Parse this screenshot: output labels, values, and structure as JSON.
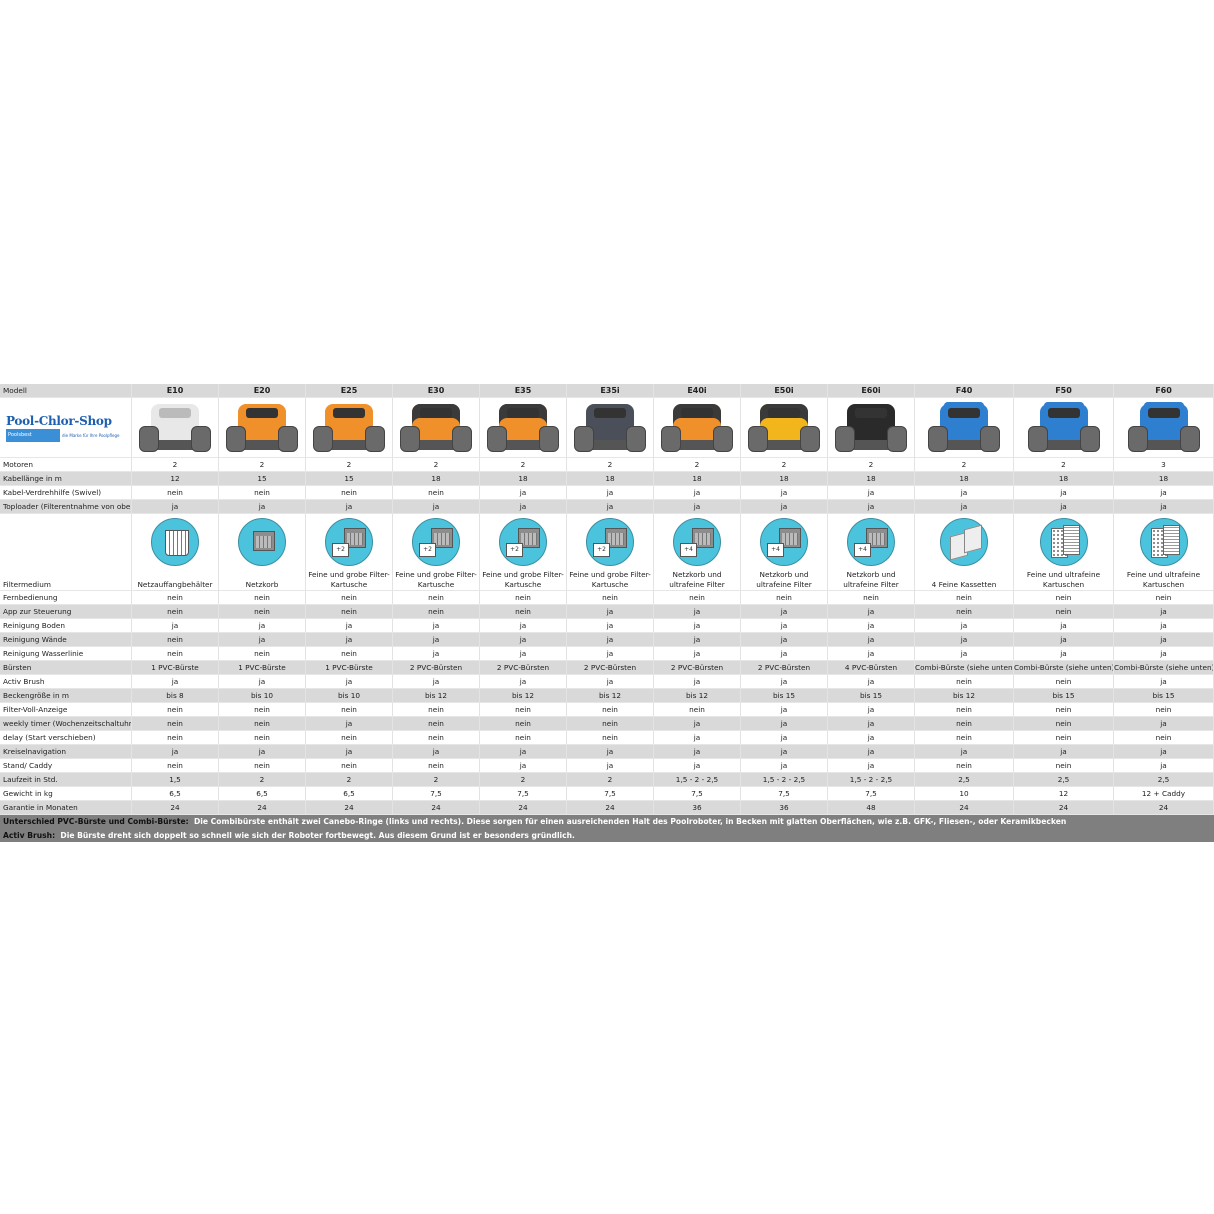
{
  "brand": {
    "logo_text": "Pool-Chlor-Shop",
    "logo_sub": "Poolsbest",
    "logo_tagline": "die Marke für Ihre Poolpflege"
  },
  "colors": {
    "header_row": "#d9d9d9",
    "stripe_row": "#d9d9d9",
    "footer": "#7f7f7f",
    "icon_circle": "#4cc3dc",
    "robot_orange": "#f0902a",
    "robot_blue": "#2f7fd1"
  },
  "table": {
    "model_label": "Modell",
    "models": [
      {
        "name": "E10",
        "robot": "white"
      },
      {
        "name": "E20",
        "robot": "orange"
      },
      {
        "name": "E25",
        "robot": "orange"
      },
      {
        "name": "E30",
        "robot": "orange-dark"
      },
      {
        "name": "E35",
        "robot": "orange-dark"
      },
      {
        "name": "E35i",
        "robot": "dark"
      },
      {
        "name": "E40i",
        "robot": "orange-dark"
      },
      {
        "name": "E50i",
        "robot": "yellow-dark"
      },
      {
        "name": "E60i",
        "robot": "black"
      },
      {
        "name": "F40",
        "robot": "blue"
      },
      {
        "name": "F50",
        "robot": "blue"
      },
      {
        "name": "F60",
        "robot": "blue"
      }
    ],
    "rows_top": [
      {
        "label": "Motoren",
        "values": [
          "2",
          "2",
          "2",
          "2",
          "2",
          "2",
          "2",
          "2",
          "2",
          "2",
          "2",
          "3"
        ]
      },
      {
        "label": "Kabellänge in m",
        "values": [
          "12",
          "15",
          "15",
          "18",
          "18",
          "18",
          "18",
          "18",
          "18",
          "18",
          "18",
          "18"
        ]
      },
      {
        "label": "Kabel-Verdrehhilfe (Swivel)",
        "values": [
          "nein",
          "nein",
          "nein",
          "nein",
          "ja",
          "ja",
          "ja",
          "ja",
          "ja",
          "ja",
          "ja",
          "ja"
        ]
      },
      {
        "label": "Toploader (Filterentnahme von oben)",
        "values": [
          "ja",
          "ja",
          "ja",
          "ja",
          "ja",
          "ja",
          "ja",
          "ja",
          "ja",
          "ja",
          "ja",
          "ja"
        ]
      }
    ],
    "filter": {
      "label": "Filtermedium",
      "values": [
        "Netzauffangbehälter",
        "Netzkorb",
        "Feine und grobe Filter-Kartusche",
        "Feine und grobe Filter-Kartusche",
        "Feine und grobe Filter-Kartusche",
        "Feine und grobe Filter-Kartusche",
        "Netzkorb und ultrafeine Filter",
        "Netzkorb und ultrafeine Filter",
        "Netzkorb und ultrafeine Filter",
        "4 Feine Kassetten",
        "Feine und ultrafeine Kartuschen",
        "Feine und ultrafeine Kartuschen"
      ],
      "icons": [
        "basket-icon",
        "box-icon",
        "box-plus-icon",
        "box-plus-icon",
        "box-plus-icon",
        "box-plus-icon",
        "box-plus-icon",
        "box-plus-icon",
        "box-plus-icon",
        "cassettes-icon",
        "cartridges-icon",
        "cartridges-icon"
      ],
      "badges": [
        "",
        "",
        "+2",
        "+2",
        "+2",
        "+2",
        "+4",
        "+4",
        "+4",
        "",
        "",
        ""
      ]
    },
    "rows_bottom": [
      {
        "label": "Fernbedienung",
        "values": [
          "nein",
          "nein",
          "nein",
          "nein",
          "nein",
          "nein",
          "nein",
          "nein",
          "nein",
          "nein",
          "nein",
          "nein"
        ]
      },
      {
        "label": "App zur Steuerung",
        "values": [
          "nein",
          "nein",
          "nein",
          "nein",
          "nein",
          "ja",
          "ja",
          "ja",
          "ja",
          "nein",
          "nein",
          "ja"
        ]
      },
      {
        "label": "Reinigung Boden",
        "values": [
          "ja",
          "ja",
          "ja",
          "ja",
          "ja",
          "ja",
          "ja",
          "ja",
          "ja",
          "ja",
          "ja",
          "ja"
        ]
      },
      {
        "label": "Reinigung Wände",
        "values": [
          "nein",
          "ja",
          "ja",
          "ja",
          "ja",
          "ja",
          "ja",
          "ja",
          "ja",
          "ja",
          "ja",
          "ja"
        ]
      },
      {
        "label": "Reinigung Wasserlinie",
        "values": [
          "nein",
          "nein",
          "nein",
          "ja",
          "ja",
          "ja",
          "ja",
          "ja",
          "ja",
          "ja",
          "ja",
          "ja"
        ]
      },
      {
        "label": "Bürsten",
        "values": [
          "1 PVC-Bürste",
          "1 PVC-Bürste",
          "1 PVC-Bürste",
          "2 PVC-Bürsten",
          "2 PVC-Bürsten",
          "2 PVC-Bürsten",
          "2 PVC-Bürsten",
          "2 PVC-Bürsten",
          "4 PVC-Bürsten",
          "Combi-Bürste (siehe unten)",
          "Combi-Bürste (siehe unten)",
          "Combi-Bürste (siehe unten)"
        ]
      },
      {
        "label": "Activ Brush",
        "values": [
          "ja",
          "ja",
          "ja",
          "ja",
          "ja",
          "ja",
          "ja",
          "ja",
          "ja",
          "nein",
          "nein",
          "ja"
        ]
      },
      {
        "label": "Beckengröße in m",
        "values": [
          "bis 8",
          "bis 10",
          "bis 10",
          "bis 12",
          "bis 12",
          "bis 12",
          "bis 12",
          "bis 15",
          "bis 15",
          "bis 12",
          "bis 15",
          "bis 15"
        ]
      },
      {
        "label": "Filter-Voll-Anzeige",
        "values": [
          "nein",
          "nein",
          "nein",
          "nein",
          "nein",
          "nein",
          "nein",
          "ja",
          "ja",
          "nein",
          "nein",
          "nein"
        ]
      },
      {
        "label": "weekly timer (Wochenzeitschaltuhr)",
        "values": [
          "nein",
          "nein",
          "ja",
          "nein",
          "nein",
          "nein",
          "ja",
          "ja",
          "ja",
          "nein",
          "nein",
          "ja"
        ]
      },
      {
        "label": "delay (Start verschieben)",
        "values": [
          "nein",
          "nein",
          "nein",
          "nein",
          "nein",
          "nein",
          "ja",
          "ja",
          "ja",
          "nein",
          "nein",
          "nein"
        ]
      },
      {
        "label": "Kreiselnavigation",
        "values": [
          "ja",
          "ja",
          "ja",
          "ja",
          "ja",
          "ja",
          "ja",
          "ja",
          "ja",
          "ja",
          "ja",
          "ja"
        ]
      },
      {
        "label": "Stand/ Caddy",
        "values": [
          "nein",
          "nein",
          "nein",
          "nein",
          "ja",
          "ja",
          "ja",
          "ja",
          "ja",
          "nein",
          "nein",
          "ja"
        ]
      },
      {
        "label": "Laufzeit in Std.",
        "values": [
          "1,5",
          "2",
          "2",
          "2",
          "2",
          "2",
          "1,5 - 2 - 2,5",
          "1,5 - 2 - 2,5",
          "1,5 - 2 - 2,5",
          "2,5",
          "2,5",
          "2,5"
        ]
      },
      {
        "label": "Gewicht in kg",
        "values": [
          "6,5",
          "6,5",
          "6,5",
          "7,5",
          "7,5",
          "7,5",
          "7,5",
          "7,5",
          "7,5",
          "10",
          "12",
          "12 + Caddy"
        ]
      },
      {
        "label": "Garantie in Monaten",
        "values": [
          "24",
          "24",
          "24",
          "24",
          "24",
          "24",
          "36",
          "36",
          "48",
          "24",
          "24",
          "24"
        ]
      }
    ]
  },
  "footer": [
    {
      "title": "Unterschied PVC-Bürste und Combi-Bürste:",
      "text": "Die Combibürste enthält zwei Canebo-Ringe (links und rechts). Diese sorgen für einen ausreichenden Halt des Poolroboter, in Becken mit glatten Oberflächen, wie z.B. GFK-, Fliesen-, oder Keramikbecken"
    },
    {
      "title": "Activ Brush:",
      "text": "Die Bürste dreht sich doppelt so schnell wie sich der Roboter fortbewegt. Aus diesem Grund ist er besonders gründlich."
    }
  ]
}
